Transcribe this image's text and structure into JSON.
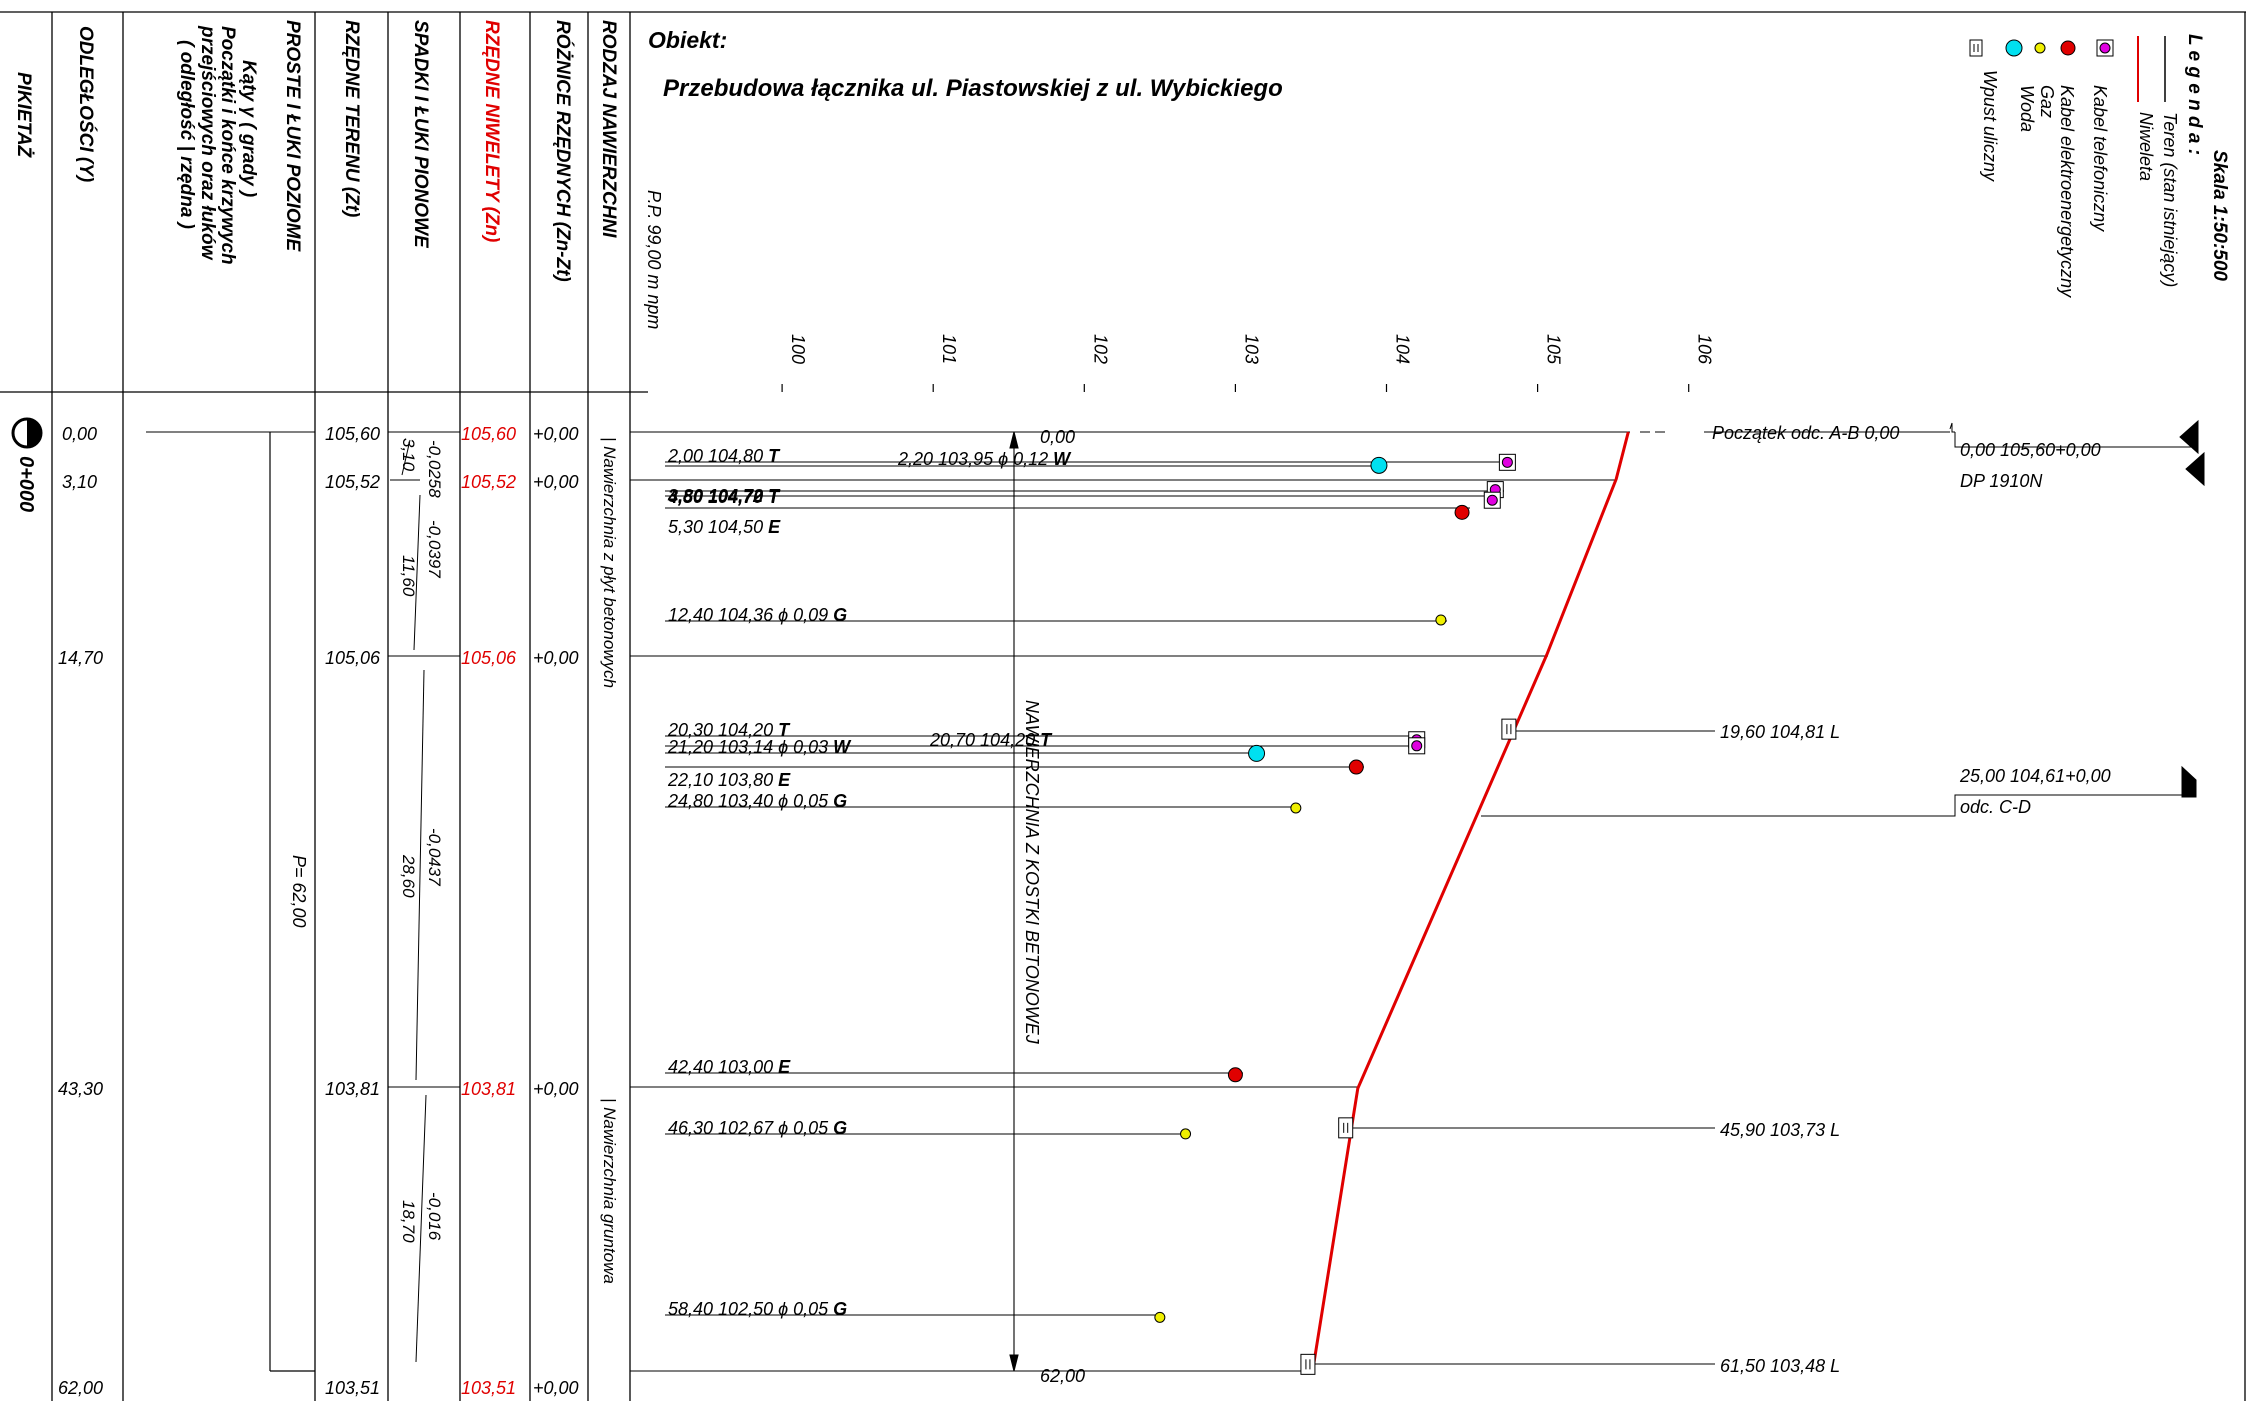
{
  "header_labels": {
    "pikietaz": "PIKIETAŻ",
    "odleglosci": "ODLEGŁOŚCI (Y)",
    "katy": [
      "Kąty γ  ( grady )",
      "Początki i końce krzywych",
      "przejściowych oraz łuków",
      "( odległość | rzędna )"
    ],
    "proste": "PROSTE I ŁUKI POZIOME",
    "rzedne_terenu": "RZĘDNE TERENU (Zt)",
    "spadki": "SPADKI I ŁUKI PIONOWE",
    "rzedne_niwelety": "RZĘDNE NIWELETY (Zn)",
    "roznice": "RÓŻNICE RZĘDNYCH (Zn-Zt)",
    "rodzaj": "RODZAJ NAWIERZCHNI"
  },
  "title": {
    "label": "Obiekt:",
    "name": "Przebudowa łącznika ul. Piastowskiej z ul. Wybickiego"
  },
  "legend": {
    "scale": "Skala 1:50:500",
    "heading": "L e g e n d a :",
    "items": [
      {
        "name": "Teren (stan istniejący)",
        "symbol": "black-line"
      },
      {
        "name": "Niweleta",
        "symbol": "red-line"
      },
      {
        "name": "Kabel telefoniczny",
        "symbol": "magenta-boxed-dot",
        "color": "#e000e0"
      },
      {
        "name": "Kabel elektroenergetyczny",
        "symbol": "red-dot",
        "color": "#e00000"
      },
      {
        "name": "Gaz",
        "symbol": "yellow-dot",
        "color": "#f0f000"
      },
      {
        "name": "Woda",
        "symbol": "cyan-dot",
        "color": "#00e0f0"
      },
      {
        "name": "Wpust uliczny",
        "symbol": "inlet-box"
      }
    ]
  },
  "axis": {
    "pp": "P.P. 99,00  m  npm",
    "ticks": [
      "100",
      "101",
      "102",
      "103",
      "104",
      "105",
      "106"
    ]
  },
  "stations": [
    {
      "odl": "0,00",
      "zt": "105,60",
      "zn": "105,60",
      "diff": "+0,00"
    },
    {
      "odl": "3,10",
      "zt": "105,52",
      "zn": "105,52",
      "diff": "+0,00"
    },
    {
      "odl": "14,70",
      "zt": "105,06",
      "zn": "105,06",
      "diff": "+0,00"
    },
    {
      "odl": "43,30",
      "zt": "103,81",
      "zn": "103,81",
      "diff": "+0,00"
    },
    {
      "odl": "62,00",
      "zt": "103,51",
      "zn": "103,51",
      "diff": "+0,00"
    }
  ],
  "pikietaz": "0+000",
  "proste_label": "P= 62,00",
  "slopes": [
    {
      "grade": "-0,0258",
      "len": "3,10"
    },
    {
      "grade": "-0,0397",
      "len": "11,60"
    },
    {
      "grade": "-0,0437",
      "len": "28,60"
    },
    {
      "grade": "-0,016",
      "len": "18,70"
    }
  ],
  "surfaces": [
    "|  Nawierzchnia z płyt betonowych",
    "|  Nawierzchnia gruntowa"
  ],
  "center_note": "NAWIERZCHNIA Z KOSTKI BETONOWEJ",
  "top_mark": "0,00",
  "bottom_mark": "62,00",
  "utility_labels": [
    {
      "text": "2,00 104,80",
      "code": "T"
    },
    {
      "text": "2,20 103,95 ϕ 0,12",
      "code": "W"
    },
    {
      "text": "3,80 104,72",
      "code": "T"
    },
    {
      "text": "4,50 104,70",
      "code": "T"
    },
    {
      "text": "5,30 104,50",
      "code": "E"
    },
    {
      "text": "12,40 104,36 ϕ 0,09",
      "code": "G"
    },
    {
      "text": "20,30 104,20",
      "code": "T"
    },
    {
      "text": "21,20 103,14 ϕ 0,03",
      "code": "W"
    },
    {
      "text": "20,70 104,20",
      "code": "T"
    },
    {
      "text": "22,10 103,80",
      "code": "E"
    },
    {
      "text": "24,80 103,40 ϕ 0,05",
      "code": "G"
    },
    {
      "text": "42,40 103,00",
      "code": "E"
    },
    {
      "text": "46,30 102,67 ϕ 0,05",
      "code": "G"
    },
    {
      "text": "58,40 102,50 ϕ 0,05",
      "code": "G"
    }
  ],
  "right_labels": {
    "start": "Początek odc. A-B  0,00",
    "dp_value": "0,00  105,60+0,00",
    "dp_name": "DP 1910N",
    "inlet1": "19,60 104,81 L",
    "cd_value": "25,00  104,61+0,00",
    "cd_name": "odc. C-D",
    "inlet2": "45,90 103,73 L",
    "inlet3": "61,50 103,48 L"
  },
  "chart_data": {
    "type": "line",
    "xlabel": "",
    "ylabel": "",
    "x_unit": "m",
    "ylim": [
      99.0,
      106.0
    ],
    "series": [
      {
        "name": "Teren (stan istniejący)",
        "x": [
          0.0,
          3.1,
          14.7,
          43.3,
          62.0
        ],
        "y": [
          105.6,
          105.52,
          105.06,
          103.81,
          103.51
        ]
      },
      {
        "name": "Niweleta",
        "x": [
          0.0,
          3.1,
          14.7,
          43.3,
          62.0
        ],
        "y": [
          105.6,
          105.52,
          105.06,
          103.81,
          103.51
        ]
      }
    ],
    "utilities": [
      {
        "x": 2.0,
        "y": 104.8,
        "type": "T"
      },
      {
        "x": 2.2,
        "y": 103.95,
        "type": "W"
      },
      {
        "x": 3.8,
        "y": 104.72,
        "type": "T"
      },
      {
        "x": 4.5,
        "y": 104.7,
        "type": "T"
      },
      {
        "x": 5.3,
        "y": 104.5,
        "type": "E"
      },
      {
        "x": 12.4,
        "y": 104.36,
        "type": "G"
      },
      {
        "x": 20.3,
        "y": 104.2,
        "type": "T"
      },
      {
        "x": 20.7,
        "y": 104.2,
        "type": "T"
      },
      {
        "x": 21.2,
        "y": 103.14,
        "type": "W"
      },
      {
        "x": 22.1,
        "y": 103.8,
        "type": "E"
      },
      {
        "x": 24.8,
        "y": 103.4,
        "type": "G"
      },
      {
        "x": 42.4,
        "y": 103.0,
        "type": "E"
      },
      {
        "x": 46.3,
        "y": 102.67,
        "type": "G"
      },
      {
        "x": 58.4,
        "y": 102.5,
        "type": "G"
      }
    ],
    "inlets": [
      {
        "x": 19.6,
        "y": 104.81,
        "side": "L"
      },
      {
        "x": 45.9,
        "y": 103.73,
        "side": "L"
      },
      {
        "x": 61.5,
        "y": 103.48,
        "side": "L"
      }
    ]
  }
}
